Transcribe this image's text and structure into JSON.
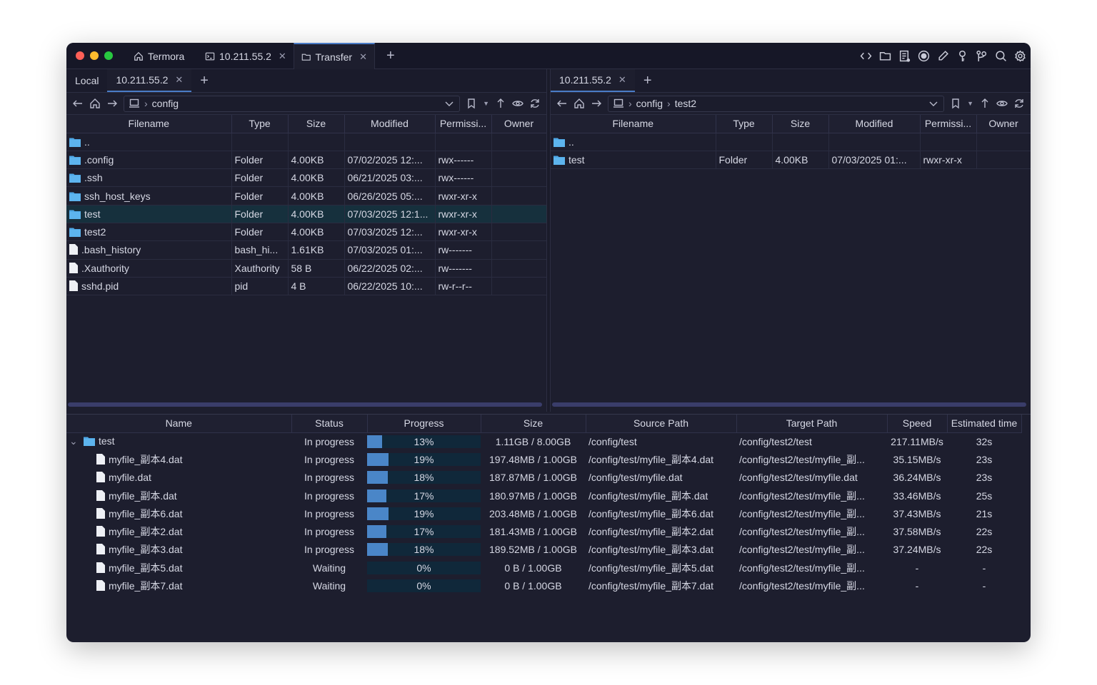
{
  "window": {
    "tabs": [
      {
        "label": "Termora",
        "icon": "home-icon"
      },
      {
        "label": "10.211.55.2",
        "icon": "terminal-icon"
      },
      {
        "label": "Transfer",
        "icon": "folder-icon",
        "active": true
      }
    ],
    "toolbar_icons": [
      "code-icon",
      "folder-icon",
      "log-icon",
      "record-icon",
      "pen-icon",
      "key-icon",
      "keygen-icon",
      "search-icon",
      "gear-icon"
    ]
  },
  "colors": {
    "accent": "#4a7cc7",
    "folder": "#4fa8e6",
    "background": "#1d1e2e",
    "progress": "#4a86c8"
  },
  "left": {
    "tabs": [
      "Local",
      "10.211.55.2"
    ],
    "path": [
      "config"
    ],
    "columns": [
      "Filename",
      "Type",
      "Size",
      "Modified",
      "Permissi...",
      "Owner"
    ],
    "rows": [
      [
        "..",
        "",
        "",
        "",
        "",
        ""
      ],
      [
        ".config",
        "Folder",
        "4.00KB",
        "07/02/2025 12:...",
        "rwx------",
        ""
      ],
      [
        ".ssh",
        "Folder",
        "4.00KB",
        "06/21/2025 03:...",
        "rwx------",
        ""
      ],
      [
        "ssh_host_keys",
        "Folder",
        "4.00KB",
        "06/26/2025 05:...",
        "rwxr-xr-x",
        ""
      ],
      [
        "test",
        "Folder",
        "4.00KB",
        "07/03/2025 12:1...",
        "rwxr-xr-x",
        ""
      ],
      [
        "test2",
        "Folder",
        "4.00KB",
        "07/03/2025 12:...",
        "rwxr-xr-x",
        ""
      ],
      [
        ".bash_history",
        "bash_hi...",
        "1.61KB",
        "07/03/2025 01:...",
        "rw-------",
        ""
      ],
      [
        ".Xauthority",
        "Xauthority",
        "58 B",
        "06/22/2025 02:...",
        "rw-------",
        ""
      ],
      [
        "sshd.pid",
        "pid",
        "4 B",
        "06/22/2025 10:...",
        "rw-r--r--",
        ""
      ]
    ],
    "kinds": [
      "folder",
      "folder",
      "folder",
      "folder",
      "folder",
      "folder",
      "file",
      "file",
      "file"
    ],
    "selected": 4
  },
  "right": {
    "tabs": [
      "10.211.55.2"
    ],
    "path": [
      "config",
      "test2"
    ],
    "columns": [
      "Filename",
      "Type",
      "Size",
      "Modified",
      "Permissi...",
      "Owner"
    ],
    "rows": [
      [
        "..",
        "",
        "",
        "",
        "",
        ""
      ],
      [
        "test",
        "Folder",
        "4.00KB",
        "07/03/2025 01:...",
        "rwxr-xr-x",
        ""
      ]
    ],
    "kinds": [
      "folder",
      "folder"
    ]
  },
  "transfers": {
    "columns": [
      "Name",
      "Status",
      "Progress",
      "Size",
      "Source Path",
      "Target Path",
      "Speed",
      "Estimated time"
    ],
    "rows": [
      {
        "name": "test",
        "kind": "folder",
        "status": "In progress",
        "progress": 13,
        "progress_label": "13%",
        "size": "1.11GB / 8.00GB",
        "source": "/config/test",
        "target": "/config/test2/test",
        "speed": "217.11MB/s",
        "eta": "32s"
      },
      {
        "name": "myfile_副本4.dat",
        "kind": "file",
        "status": "In progress",
        "progress": 19,
        "progress_label": "19%",
        "size": "197.48MB / 1.00GB",
        "source": "/config/test/myfile_副本4.dat",
        "target": "/config/test2/test/myfile_副...",
        "speed": "35.15MB/s",
        "eta": "23s"
      },
      {
        "name": "myfile.dat",
        "kind": "file",
        "status": "In progress",
        "progress": 18,
        "progress_label": "18%",
        "size": "187.87MB / 1.00GB",
        "source": "/config/test/myfile.dat",
        "target": "/config/test2/test/myfile.dat",
        "speed": "36.24MB/s",
        "eta": "23s"
      },
      {
        "name": "myfile_副本.dat",
        "kind": "file",
        "status": "In progress",
        "progress": 17,
        "progress_label": "17%",
        "size": "180.97MB / 1.00GB",
        "source": "/config/test/myfile_副本.dat",
        "target": "/config/test2/test/myfile_副...",
        "speed": "33.46MB/s",
        "eta": "25s"
      },
      {
        "name": "myfile_副本6.dat",
        "kind": "file",
        "status": "In progress",
        "progress": 19,
        "progress_label": "19%",
        "size": "203.48MB / 1.00GB",
        "source": "/config/test/myfile_副本6.dat",
        "target": "/config/test2/test/myfile_副...",
        "speed": "37.43MB/s",
        "eta": "21s"
      },
      {
        "name": "myfile_副本2.dat",
        "kind": "file",
        "status": "In progress",
        "progress": 17,
        "progress_label": "17%",
        "size": "181.43MB / 1.00GB",
        "source": "/config/test/myfile_副本2.dat",
        "target": "/config/test2/test/myfile_副...",
        "speed": "37.58MB/s",
        "eta": "22s"
      },
      {
        "name": "myfile_副本3.dat",
        "kind": "file",
        "status": "In progress",
        "progress": 18,
        "progress_label": "18%",
        "size": "189.52MB / 1.00GB",
        "source": "/config/test/myfile_副本3.dat",
        "target": "/config/test2/test/myfile_副...",
        "speed": "37.24MB/s",
        "eta": "22s"
      },
      {
        "name": "myfile_副本5.dat",
        "kind": "file",
        "status": "Waiting",
        "progress": 0,
        "progress_label": "0%",
        "size": "0 B / 1.00GB",
        "source": "/config/test/myfile_副本5.dat",
        "target": "/config/test2/test/myfile_副...",
        "speed": "-",
        "eta": "-"
      },
      {
        "name": "myfile_副本7.dat",
        "kind": "file",
        "status": "Waiting",
        "progress": 0,
        "progress_label": "0%",
        "size": "0 B / 1.00GB",
        "source": "/config/test/myfile_副本7.dat",
        "target": "/config/test2/test/myfile_副...",
        "speed": "-",
        "eta": "-"
      }
    ]
  }
}
